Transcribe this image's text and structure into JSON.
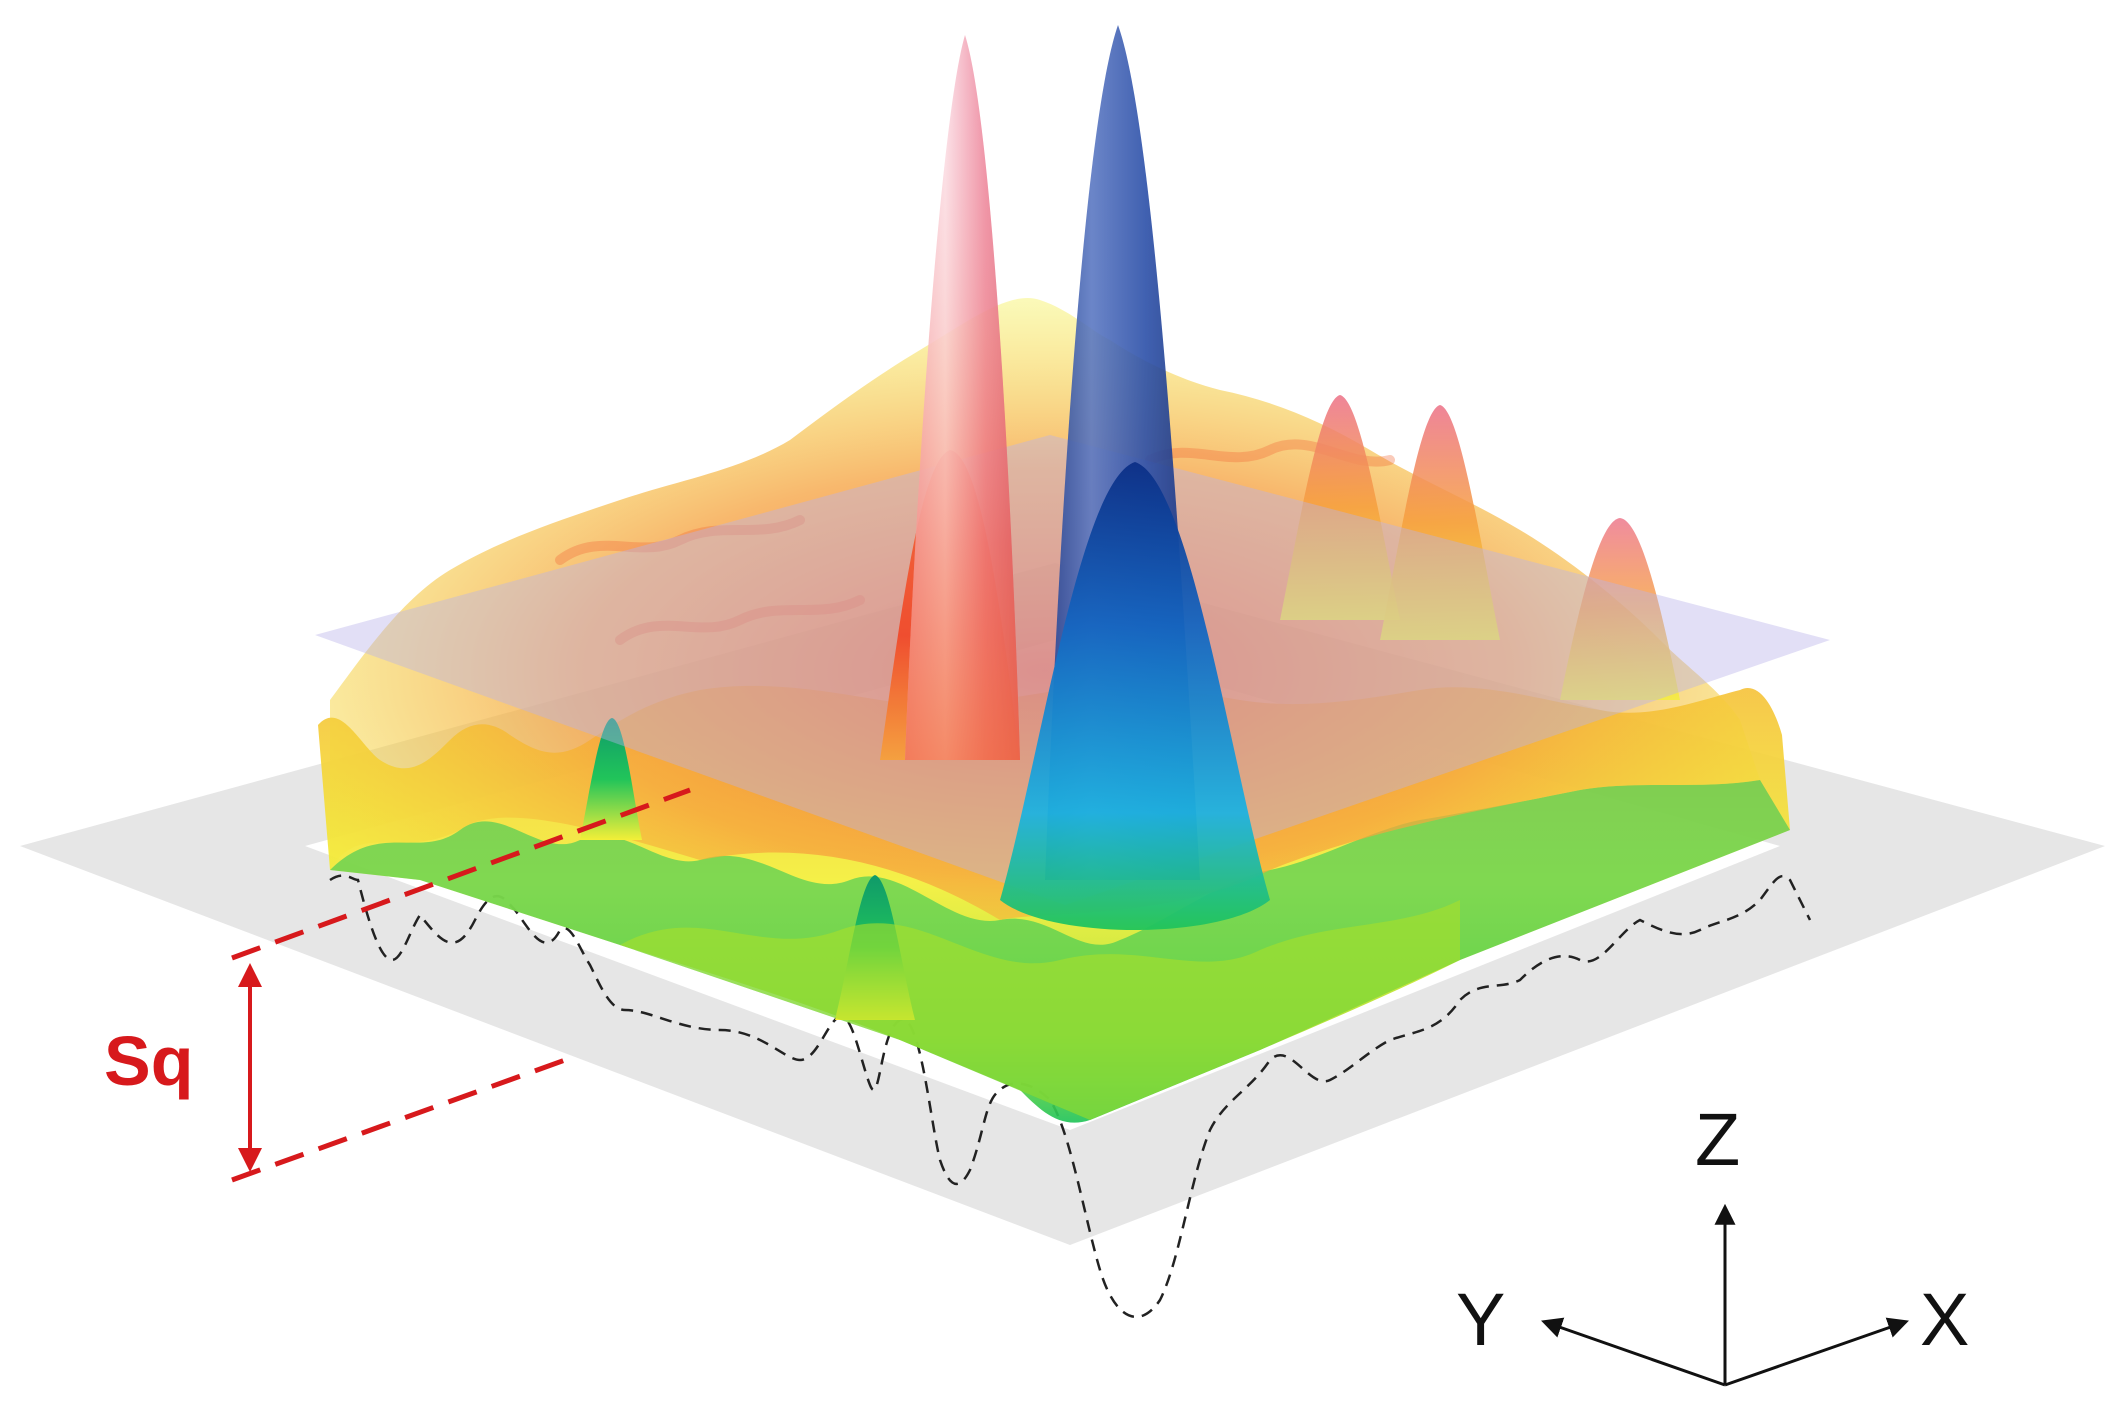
{
  "diagram": {
    "measure_label": "Sq",
    "axes": {
      "x_label": "X",
      "y_label": "Y",
      "z_label": "Z"
    },
    "colors": {
      "measure": "#d7191c",
      "profile": "#222222",
      "reference_plane": "#e6e6e6",
      "mean_plane": "#b9b3ea",
      "axis": "#111111"
    },
    "colormap": [
      "#0a2f8a",
      "#1565c0",
      "#1eb2e0",
      "#21c45a",
      "#a8e02a",
      "#f3ef38",
      "#f6b93c",
      "#f26a3a",
      "#ec6f86",
      "#f6b7c6"
    ]
  }
}
